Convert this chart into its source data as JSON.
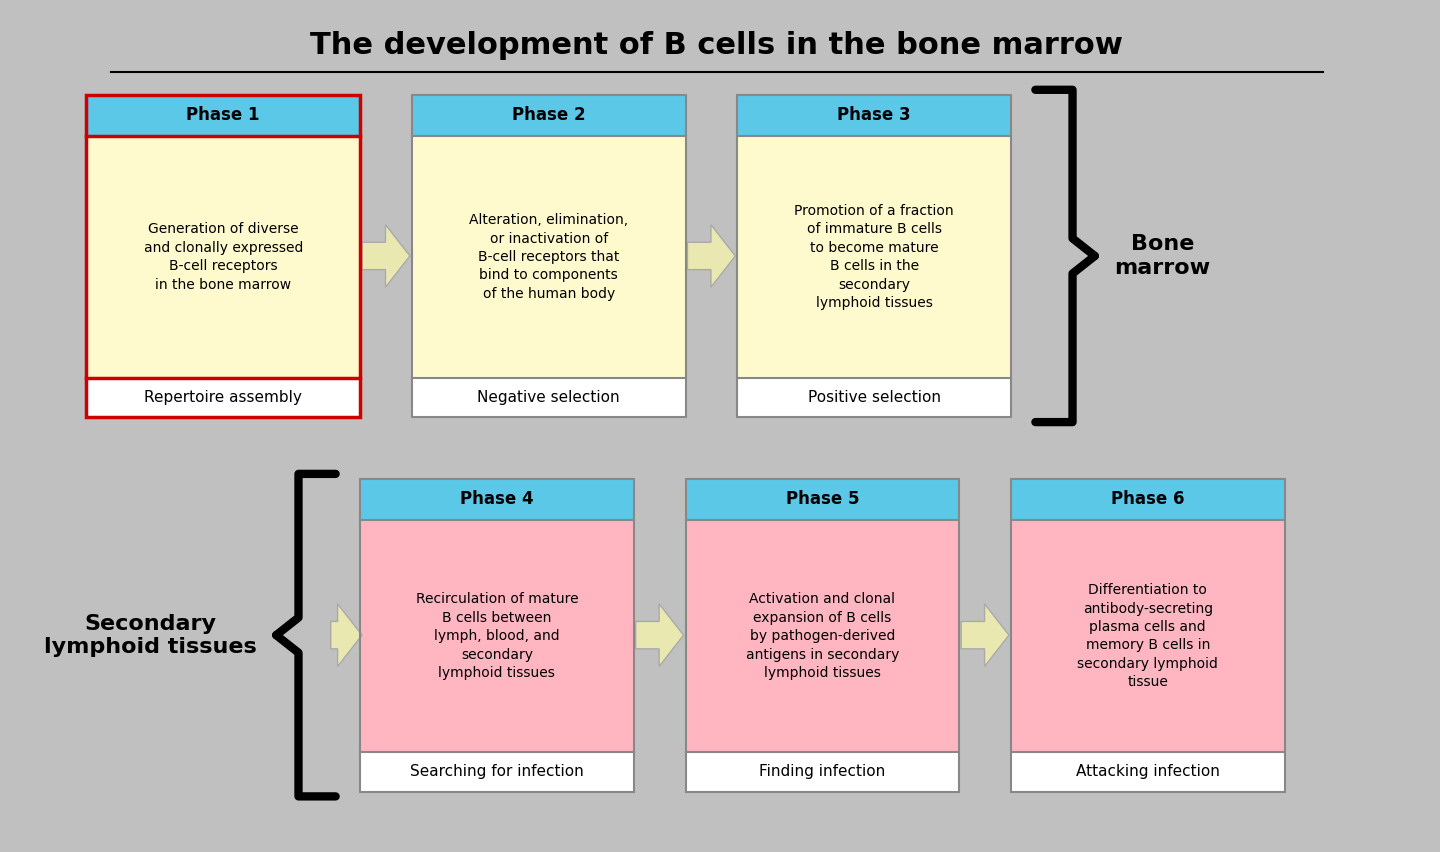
{
  "title": "The development of B cells in the bone marrow",
  "bg_color": "#c0c0c0",
  "header_color": "#5bc8e8",
  "phase_top_body_color": "#fffacd",
  "phase_bot_body_color": "#ffb6c1",
  "footer_color": "#ffffff",
  "phases_top": [
    {
      "label": "Phase 1",
      "body": "Generation of diverse\nand clonally expressed\nB-cell receptors\nin the bone marrow",
      "footer": "Repertoire assembly",
      "border_color": "#cc0000",
      "border_width": 2.5
    },
    {
      "label": "Phase 2",
      "body": "Alteration, elimination,\nor inactivation of\nB-cell receptors that\nbind to components\nof the human body",
      "footer": "Negative selection",
      "border_color": "#888888",
      "border_width": 1.5
    },
    {
      "label": "Phase 3",
      "body": "Promotion of a fraction\nof immature B cells\nto become mature\nB cells in the\nsecondary\nlymphoid tissues",
      "footer": "Positive selection",
      "border_color": "#888888",
      "border_width": 1.5
    }
  ],
  "phases_bottom": [
    {
      "label": "Phase 4",
      "body": "Recirculation of mature\nB cells between\nlymph, blood, and\nsecondary\nlymphoid tissues",
      "footer": "Searching for infection",
      "border_color": "#888888",
      "border_width": 1.5
    },
    {
      "label": "Phase 5",
      "body": "Activation and clonal\nexpansion of B cells\nby pathogen-derived\nantigens in secondary\nlymphoid tissues",
      "footer": "Finding infection",
      "border_color": "#888888",
      "border_width": 1.5
    },
    {
      "label": "Phase 6",
      "body": "Differentiation to\nantibody-secreting\nplasma cells and\nmemory B cells in\nsecondary lymphoid\ntissue",
      "footer": "Attacking infection",
      "border_color": "#888888",
      "border_width": 1.5
    }
  ],
  "bone_marrow_label": "Bone\nmarrow",
  "secondary_label": "Secondary\nlymphoid tissues"
}
